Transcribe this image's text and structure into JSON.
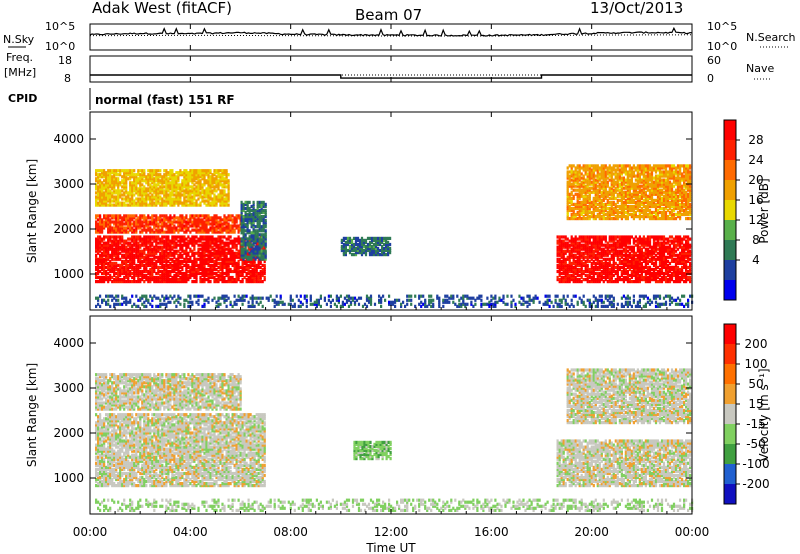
{
  "header": {
    "radar": "Adak West (fitACF)",
    "beam": "Beam 07",
    "date": "13/Oct/2013"
  },
  "side_labels": {
    "nsky": "N.Sky",
    "freq_line1": "Freq.",
    "freq_line2": "[MHz]",
    "cpid": "CPID",
    "nsearch": "N.Search",
    "nave": "Nave"
  },
  "cpid_text": "normal (fast) 151 RF",
  "noise_panel": {
    "left_ticks": [
      "10^5",
      "10^0"
    ],
    "right_ticks": [
      "10^5",
      "10^0"
    ]
  },
  "freq_panel": {
    "left_ticks": [
      "18",
      "8"
    ],
    "right_ticks": [
      "60",
      "0"
    ]
  },
  "x_axis": {
    "label": "Time UT",
    "ticks": [
      "00:00",
      "04:00",
      "08:00",
      "12:00",
      "16:00",
      "20:00",
      "00:00"
    ]
  },
  "power_panel": {
    "ylabel": "Slant Range [km]",
    "yticks": [
      "4000",
      "3000",
      "2000",
      "1000"
    ],
    "colorbar_label": "Power [dB]",
    "colorbar_ticks": [
      "28",
      "24",
      "20",
      "16",
      "12",
      "8",
      "4"
    ],
    "colors": [
      "#0000ee",
      "#1e3fa0",
      "#2f7a55",
      "#59b04a",
      "#e8d800",
      "#f0a000",
      "#ff6a00",
      "#ff2000",
      "#ff0000"
    ]
  },
  "velocity_panel": {
    "ylabel": "Slant Range [km]",
    "yticks": [
      "4000",
      "3000",
      "2000",
      "1000"
    ],
    "colorbar_label": "Velocity [m s⁻¹]",
    "colorbar_ticks": [
      "200",
      "100",
      "50",
      "15",
      "-15",
      "-50",
      "-100",
      "-200"
    ],
    "colors": [
      "#1010c0",
      "#2060d0",
      "#40a040",
      "#80d060",
      "#c8c8c0",
      "#f0a030",
      "#ff7000",
      "#ff3000",
      "#ff0000"
    ]
  },
  "chart_data": [
    {
      "type": "line",
      "title": "Adak West (fitACF) Beam 07 13/Oct/2013",
      "series": [
        {
          "name": "N.Sky",
          "x": [
            0,
            2,
            4,
            6,
            8,
            10,
            12,
            14,
            16,
            18,
            20,
            22,
            24
          ],
          "values": [
            1000,
            1800,
            1500,
            2600,
            1200,
            900,
            800,
            700,
            700,
            900,
            2000,
            2800,
            2200
          ]
        },
        {
          "name": "N.Search",
          "x": [
            0,
            4,
            8,
            12,
            16,
            20,
            24
          ],
          "values": [
            600,
            700,
            600,
            500,
            500,
            800,
            900
          ]
        }
      ],
      "xlim": [
        0,
        24
      ],
      "ylog": true
    },
    {
      "type": "line",
      "series": [
        {
          "name": "Freq.",
          "x": [
            0,
            10,
            10,
            18,
            18,
            24
          ],
          "values": [
            10.5,
            10.5,
            9.2,
            9.2,
            10.5,
            10.5
          ]
        },
        {
          "name": "Nave",
          "x": [
            0,
            24
          ],
          "values": [
            15,
            15
          ]
        }
      ],
      "xlim": [
        0,
        24
      ],
      "ylim_left": [
        8,
        18
      ],
      "ylim_right": [
        0,
        60
      ]
    },
    {
      "type": "heatmap",
      "xlabel": "Time UT",
      "ylabel": "Slant Range [km]",
      "xlim": [
        0,
        24
      ],
      "ylim": [
        200,
        4600
      ],
      "colorbar_label": "Power [dB]",
      "colorbar_range": [
        0,
        32
      ],
      "regions": [
        {
          "x": [
            0.2,
            7.0
          ],
          "y": [
            800,
            1800
          ],
          "value": 30
        },
        {
          "x": [
            0.2,
            6.0
          ],
          "y": [
            1900,
            2300
          ],
          "value": 26
        },
        {
          "x": [
            0.2,
            5.5
          ],
          "y": [
            2500,
            3300
          ],
          "value": 18
        },
        {
          "x": [
            6.0,
            7.0
          ],
          "y": [
            1300,
            2600
          ],
          "value": 8
        },
        {
          "x": [
            10.0,
            12.0
          ],
          "y": [
            1400,
            1800
          ],
          "value": 8
        },
        {
          "x": [
            0.2,
            24.0
          ],
          "y": [
            250,
            500
          ],
          "value": 6
        },
        {
          "x": [
            18.6,
            23.9
          ],
          "y": [
            800,
            1800
          ],
          "value": 30
        },
        {
          "x": [
            19.0,
            23.9
          ],
          "y": [
            2200,
            3400
          ],
          "value": 20
        }
      ]
    },
    {
      "type": "heatmap",
      "xlabel": "Time UT",
      "ylabel": "Slant Range [km]",
      "xlim": [
        0,
        24
      ],
      "ylim": [
        200,
        4600
      ],
      "colorbar_label": "Velocity [m s⁻¹]",
      "colorbar_range": [
        -250,
        250
      ],
      "regions": [
        {
          "x": [
            0.2,
            7.0
          ],
          "y": [
            800,
            2400
          ],
          "value": 0
        },
        {
          "x": [
            0.2,
            6.0
          ],
          "y": [
            2500,
            3300
          ],
          "value": 0
        },
        {
          "x": [
            10.5,
            12.0
          ],
          "y": [
            1400,
            1800
          ],
          "value": -60
        },
        {
          "x": [
            0.2,
            24.0
          ],
          "y": [
            250,
            500
          ],
          "value": -30
        },
        {
          "x": [
            18.6,
            23.9
          ],
          "y": [
            800,
            1800
          ],
          "value": 0
        },
        {
          "x": [
            19.0,
            23.9
          ],
          "y": [
            2200,
            3400
          ],
          "value": 0
        }
      ]
    }
  ]
}
